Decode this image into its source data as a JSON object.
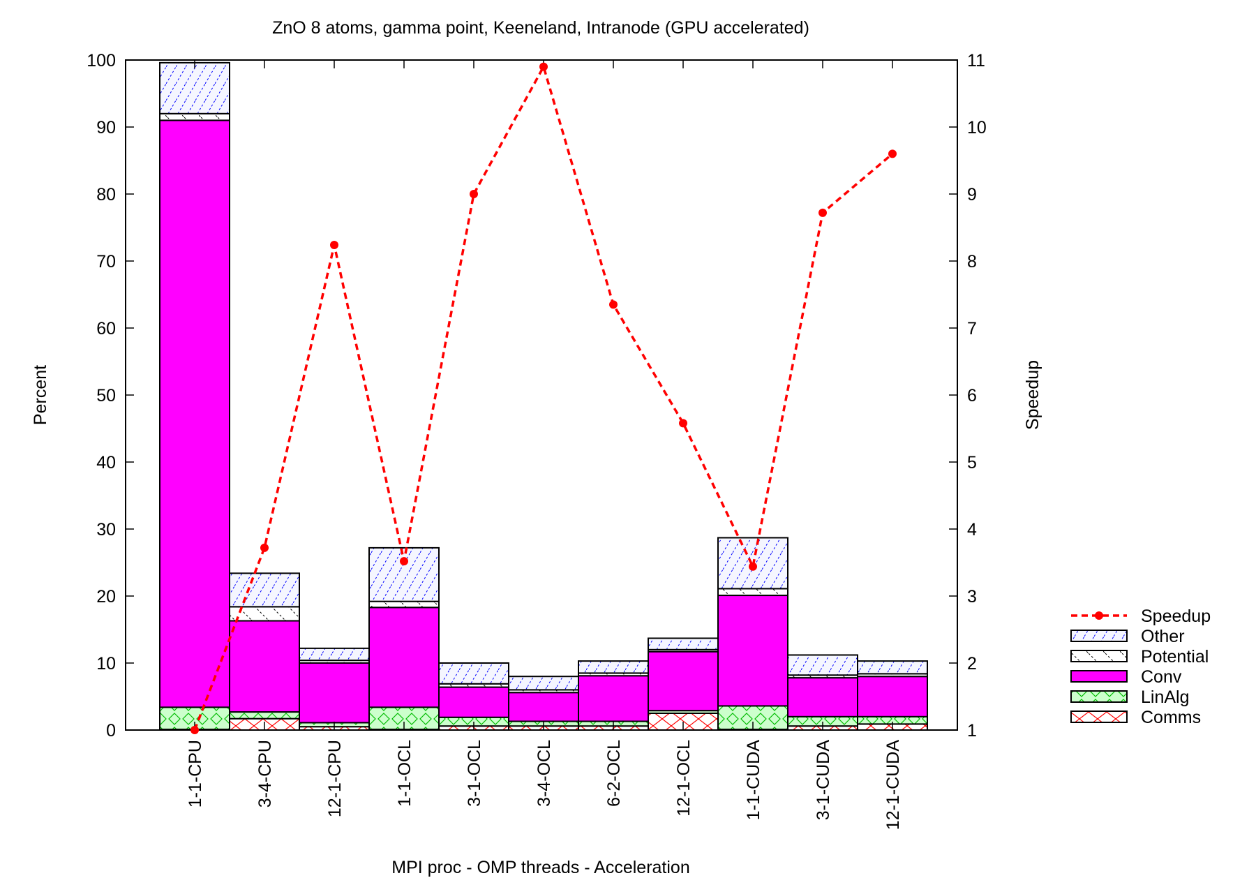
{
  "chart_data": {
    "type": "bar",
    "stacked": true,
    "title": "ZnO 8 atoms, gamma point, Keeneland, Intranode (GPU accelerated)",
    "xlabel": "MPI proc - OMP threads - Acceleration",
    "ylabel": "Percent",
    "y2label": "Speedup",
    "ylim": [
      0,
      100
    ],
    "y2lim": [
      1,
      11
    ],
    "yticks": [
      "0",
      "10",
      "20",
      "30",
      "40",
      "50",
      "60",
      "70",
      "80",
      "90",
      "100"
    ],
    "y2ticks": [
      "1",
      "2",
      "3",
      "4",
      "5",
      "6",
      "7",
      "8",
      "9",
      "10",
      "11"
    ],
    "legend_position": "right",
    "categories": [
      "1-1-CPU",
      "3-4-CPU",
      "12-1-CPU",
      "1-1-OCL",
      "3-1-OCL",
      "3-4-OCL",
      "6-2-OCL",
      "12-1-OCL",
      "1-1-CUDA",
      "3-1-CUDA",
      "12-1-CUDA"
    ],
    "series": [
      {
        "name": "Comms",
        "color": "#ff0000",
        "fill": "#ffffff",
        "pattern": "cross",
        "values": [
          0.1,
          1.7,
          0.5,
          0.1,
          0.6,
          0.6,
          0.6,
          2.5,
          0.1,
          0.6,
          0.9
        ]
      },
      {
        "name": "LinAlg",
        "color": "#00cc00",
        "fill": "#ccffcc",
        "pattern": "diamond",
        "values": [
          3.3,
          1.0,
          0.6,
          3.3,
          1.3,
          0.7,
          0.7,
          0.4,
          3.5,
          1.4,
          1.1
        ]
      },
      {
        "name": "Conv",
        "color": "#000000",
        "fill": "#ff00ff",
        "pattern": "solid",
        "values": [
          87.6,
          13.6,
          8.9,
          14.9,
          4.5,
          4.3,
          6.8,
          8.8,
          16.5,
          5.8,
          6.0
        ]
      },
      {
        "name": "Potential",
        "color": "#000000",
        "fill": "#ffffff",
        "pattern": "backslash",
        "values": [
          1.0,
          2.1,
          0.4,
          0.9,
          0.5,
          0.4,
          0.4,
          0.3,
          1.0,
          0.4,
          0.4
        ]
      },
      {
        "name": "Other",
        "color": "#0000ff",
        "fill": "#eef0ff",
        "pattern": "slash",
        "values": [
          7.6,
          5.0,
          1.8,
          8.0,
          3.1,
          2.0,
          1.8,
          1.7,
          7.6,
          3.0,
          1.9
        ]
      }
    ],
    "line": {
      "name": "Speedup",
      "color": "#ff0000",
      "axis": "y2",
      "values": [
        1.0,
        3.72,
        8.24,
        3.52,
        9.0,
        10.9,
        7.35,
        5.58,
        3.44,
        8.72,
        9.6
      ]
    }
  }
}
